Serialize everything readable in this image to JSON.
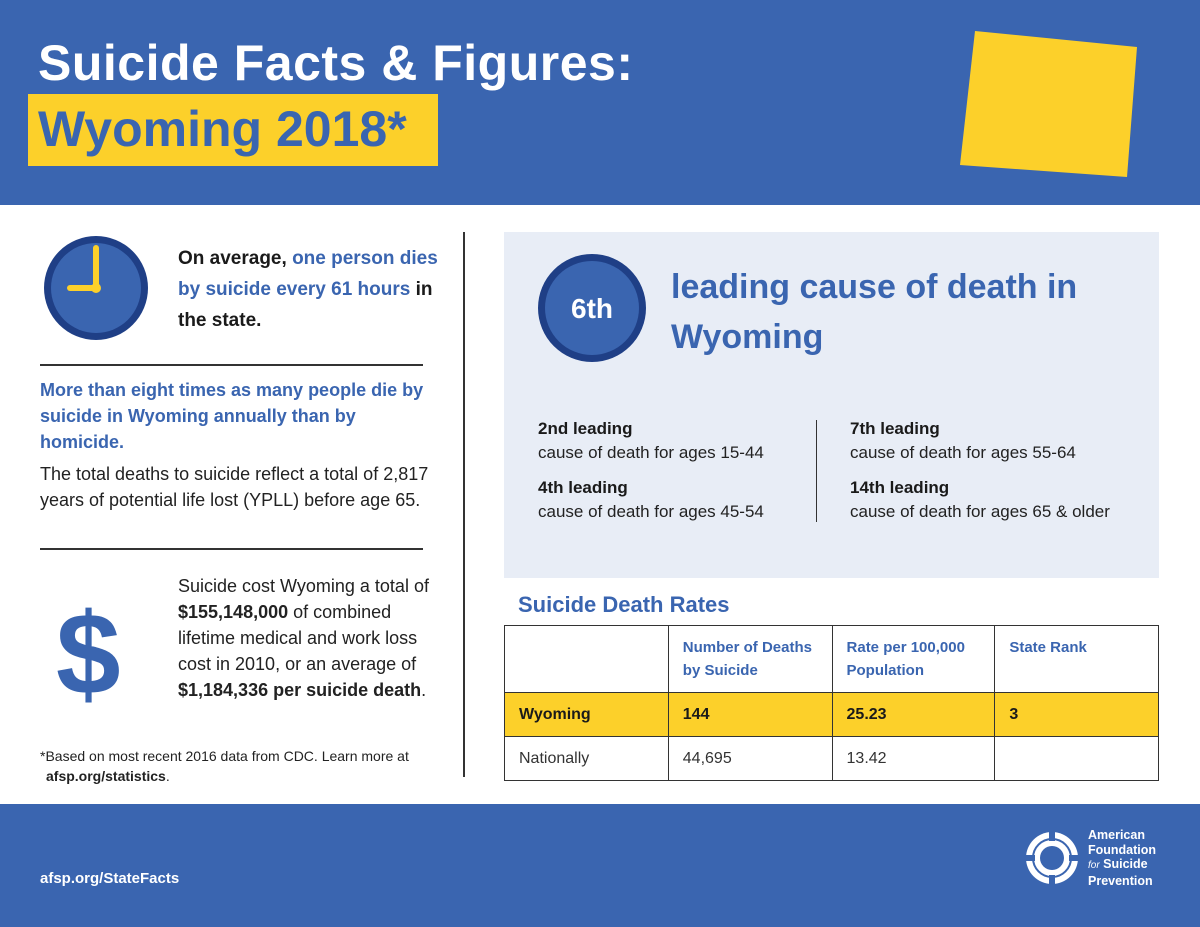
{
  "header": {
    "title_line1": "Suicide Facts & Figures:",
    "title_line2": "Wyoming 2018*"
  },
  "colors": {
    "brand_blue": "#3a65b0",
    "accent_yellow": "#fcd02a",
    "panel_bg": "#e8edf6"
  },
  "left": {
    "average": {
      "prefix": "On average, ",
      "highlight": "one person dies by suicide every 61 hours",
      "suffix": " in the state."
    },
    "homicide": "More than eight times as many people die by suicide in Wyoming annually than by homicide.",
    "ypll": "The total deaths to suicide reflect a total of 2,817 years of potential life lost (YPLL) before age 65.",
    "cost": {
      "part1": "Suicide cost Wyoming a total of ",
      "total": "$155,148,000",
      "part2": " of combined lifetime medical and work loss cost in 2010, or an average of ",
      "average": "$1,184,336",
      "average_suffix": "per suicide death",
      "end": "."
    },
    "dollar_sign": "$",
    "footnote": "*Based on most recent 2016 data from CDC. Learn more at",
    "footnote_link": "afsp.org/statistics",
    "footnote_end": "."
  },
  "rank": {
    "badge": "6th",
    "title": "leading cause of death in Wyoming",
    "stats": [
      {
        "rank": "2nd leading",
        "desc": "cause of death for ages 15-44"
      },
      {
        "rank": "4th leading",
        "desc": "cause of death for ages 45-54"
      },
      {
        "rank": "7th leading",
        "desc": "cause of death for ages 55-64"
      },
      {
        "rank": "14th leading",
        "desc": "cause of death for ages 65 & older"
      }
    ]
  },
  "rates": {
    "title": "Suicide Death Rates",
    "headers": [
      "",
      "Number of Deaths by Suicide",
      "Rate per 100,000 Population",
      "State Rank"
    ],
    "rows": [
      [
        "Wyoming",
        "144",
        "25.23",
        "3"
      ],
      [
        "Nationally",
        "44,695",
        "13.42",
        ""
      ]
    ]
  },
  "footer": {
    "link": "afsp.org/StateFacts",
    "org_line1": "American",
    "org_line2": "Foundation",
    "org_for": "for",
    "org_line3": "Suicide",
    "org_line4": "Prevention"
  }
}
